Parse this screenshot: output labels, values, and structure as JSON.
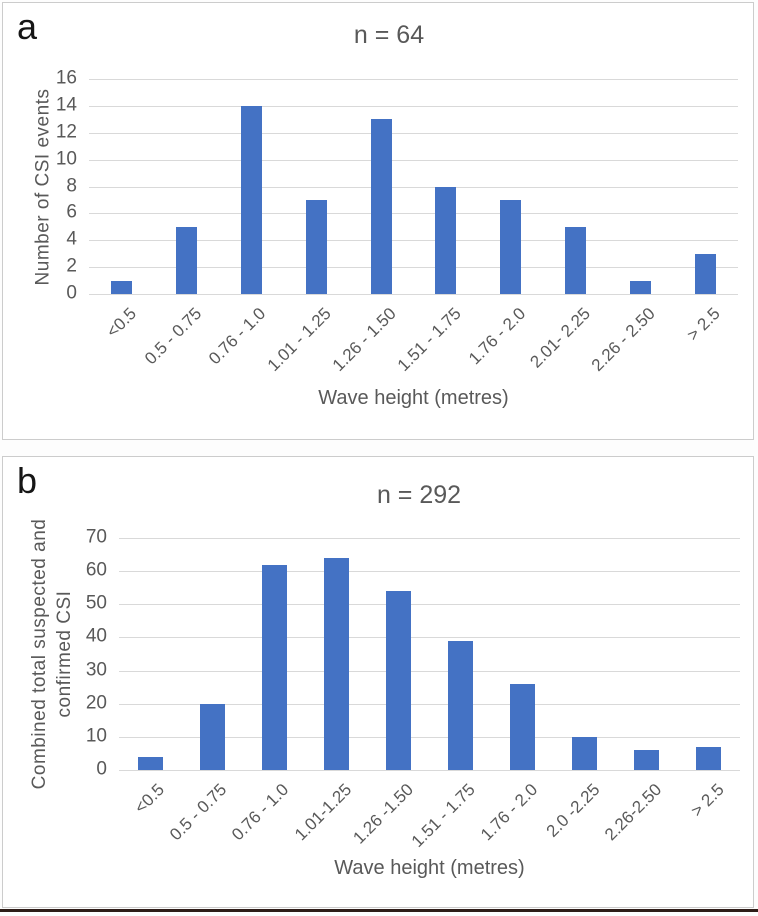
{
  "chart_data": [
    {
      "type": "bar",
      "panel_letter": "a",
      "title": "n = 64",
      "xlabel": "Wave height (metres)",
      "ylabel": "Number of CSI events",
      "ylabel_lines": [
        "Number of CSI events"
      ],
      "categories": [
        "<0.5",
        "0.5 - 0.75",
        "0.76 - 1.0",
        "1.01 - 1.25",
        "1.26 - 1.50",
        "1.51 - 1.75",
        "1.76 - 2.0",
        "2.01- 2.25",
        "2.26 - 2.50",
        "> 2.5"
      ],
      "values": [
        1,
        5,
        14,
        7,
        13,
        8,
        7,
        5,
        1,
        3
      ],
      "yticks": [
        0,
        2,
        4,
        6,
        8,
        10,
        12,
        14,
        16
      ],
      "ylim": [
        0,
        16
      ],
      "grid": true,
      "legend": "none"
    },
    {
      "type": "bar",
      "panel_letter": "b",
      "title": "n = 292",
      "xlabel": "Wave height (metres)",
      "ylabel": "Combined total suspected and confirmed CSI",
      "ylabel_lines": [
        "Combined total suspected and",
        "confirmed CSI"
      ],
      "categories": [
        "<0.5",
        "0.5 - 0.75",
        "0.76 - 1.0",
        "1.01-1.25",
        "1.26 -1.50",
        "1.51 - 1.75",
        "1.76 - 2.0",
        "2.0 -2.25",
        "2.26-2.50",
        "> 2.5"
      ],
      "values": [
        4,
        20,
        62,
        64,
        54,
        39,
        26,
        10,
        6,
        7
      ],
      "yticks": [
        0,
        10,
        20,
        30,
        40,
        50,
        60,
        70
      ],
      "ylim": [
        0,
        70
      ],
      "grid": true,
      "legend": "none"
    }
  ],
  "styles": {
    "bar_color": "#4472C4",
    "grid_color": "#d9d9d9",
    "axis_text_color": "#595959",
    "panel_border_color": "#cccccc",
    "bottom_rule_color": "#2e1d18"
  }
}
